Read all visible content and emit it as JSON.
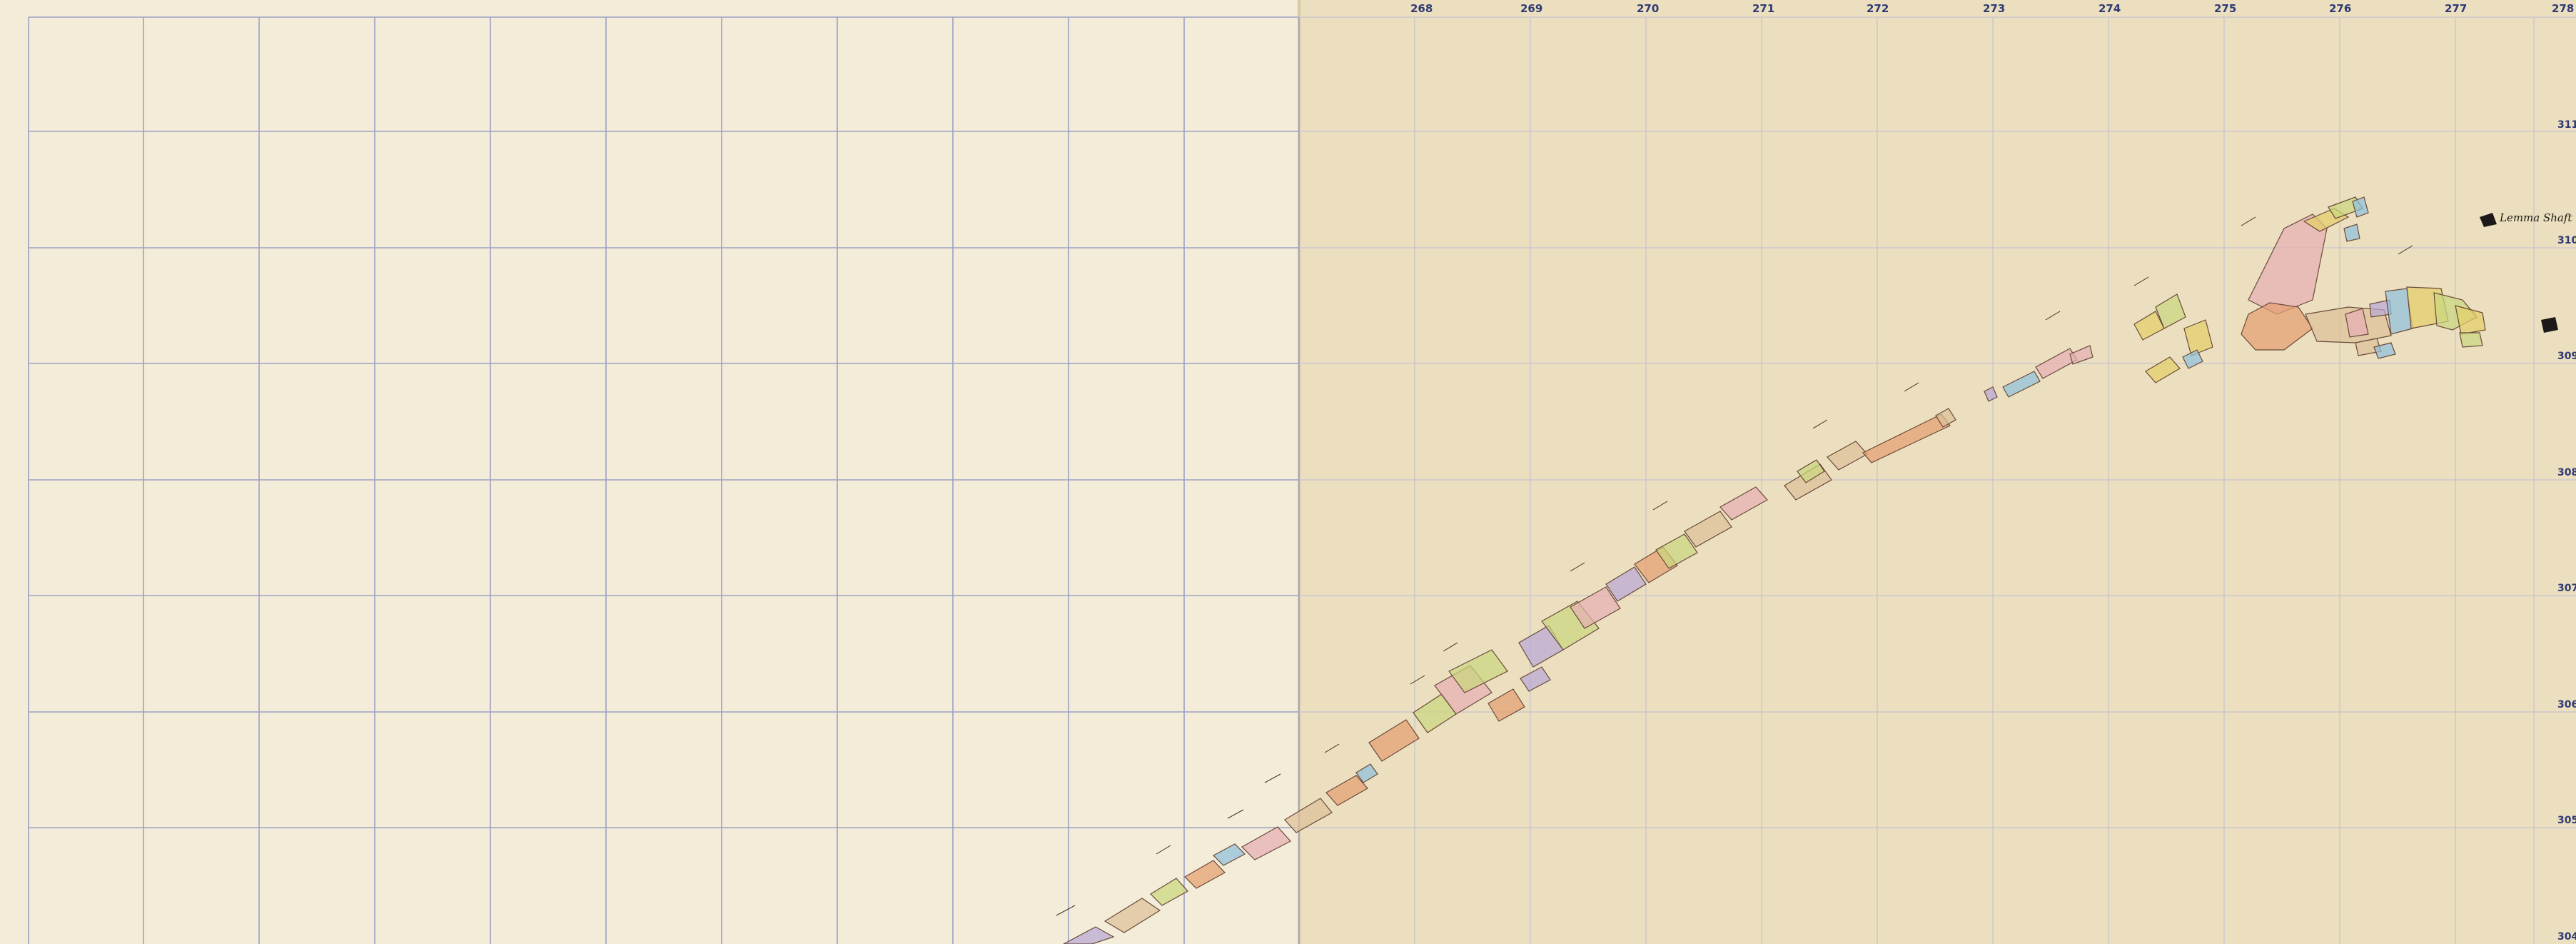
{
  "map": {
    "top_labels_right": [
      "268",
      "269",
      "270",
      "271",
      "272",
      "273",
      "274",
      "275",
      "276",
      "277",
      "278"
    ],
    "side_labels_right": [
      "311",
      "310",
      "309",
      "308",
      "307",
      "306",
      "305",
      "304"
    ],
    "shaft_label": "Lemma Shaft",
    "colors": {
      "paper_left": "#f3ecd8",
      "paper_right": "#ebdfbf",
      "grid": "#9ea0c6",
      "label": "#2e3a72",
      "claim_pink": "#e6aeb4",
      "claim_green": "#c9d77e",
      "claim_purple": "#b9a8d6",
      "claim_orange": "#e3a070",
      "claim_blue": "#8fc0dc",
      "claim_yellow": "#e2cf6a",
      "claim_tan": "#dcc09a"
    }
  }
}
